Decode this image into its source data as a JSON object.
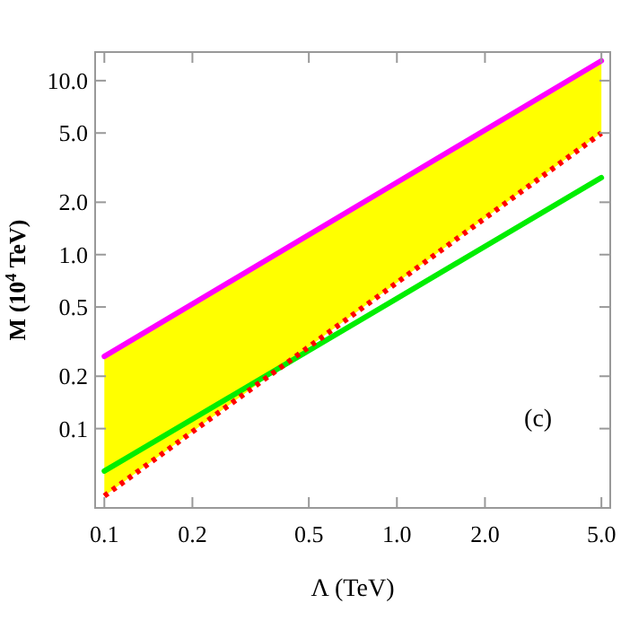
{
  "chart_data": {
    "type": "line",
    "xlabel": "Λ (TeV)",
    "ylabel": "M (10$^{4}$ TeV)",
    "log": "xy",
    "grid": false,
    "xlim": [
      0.093,
      5.36
    ],
    "ylim": [
      0.035,
      14.6
    ],
    "xticks": [
      0.1,
      0.2,
      0.5,
      {
        "value": 1,
        "label": "1.0"
      },
      {
        "value": 2,
        "label": "2.0"
      },
      {
        "value": 5,
        "label": "5.0"
      }
    ],
    "yticks": [
      0.1,
      0.2,
      0.5,
      {
        "value": 1,
        "label": "1.0"
      },
      {
        "value": 2,
        "label": "2.0"
      },
      {
        "value": 5,
        "label": "5.0"
      },
      {
        "value": 10,
        "label": "10.0"
      }
    ],
    "annotations": [
      "(c)"
    ],
    "series": [
      {
        "color": "#ff00ff",
        "x": [
          0.1,
          1,
          5
        ],
        "values": [
          0.26,
          2.6,
          13
        ],
        "line_style": "solid"
      },
      {
        "color": "#00ee00",
        "x": [
          0.1,
          1,
          5
        ],
        "values": [
          0.057,
          0.56,
          2.77
        ],
        "line_style": "solid"
      },
      {
        "color": "#ff0000",
        "x": [
          0.1,
          1,
          5
        ],
        "values": [
          0.041,
          0.69,
          5.0
        ],
        "line_style": "dotted",
        "lower": [
          0.041,
          0.69,
          5.0
        ],
        "upper": [
          0.26,
          2.6,
          13
        ]
      }
    ]
  }
}
